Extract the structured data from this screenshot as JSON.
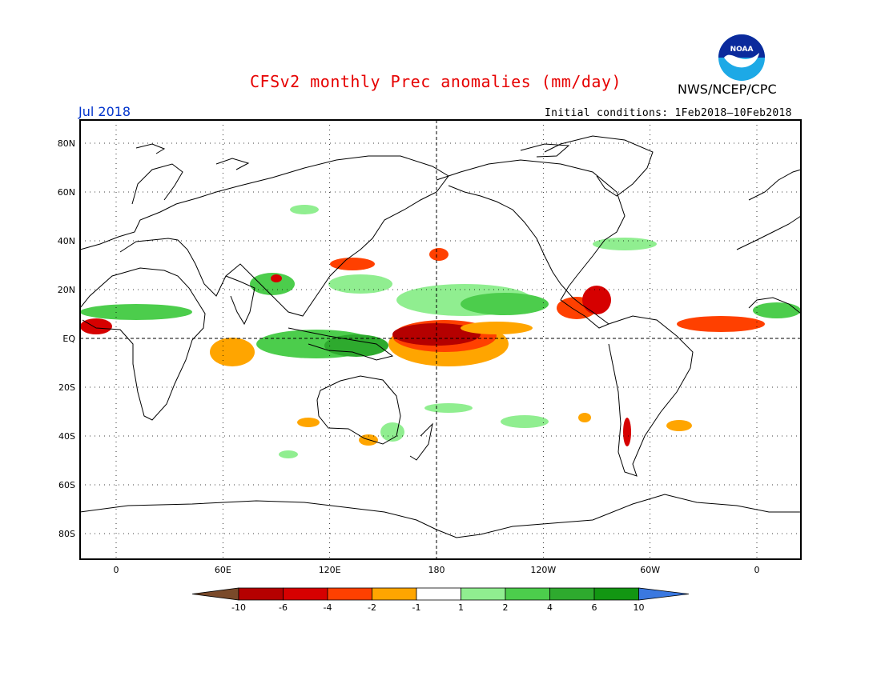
{
  "header": {
    "title": "CFSv2 monthly Prec anomalies (mm/day)",
    "org": "NWS/NCEP/CPC",
    "month": "Jul 2018",
    "initial_conditions": "Initial conditions: 1Feb2018–10Feb2018",
    "logo_text": "NOAA"
  },
  "map": {
    "lat_labels": [
      "80N",
      "60N",
      "40N",
      "20N",
      "EQ",
      "20S",
      "40S",
      "60S",
      "80S"
    ],
    "lon_labels": [
      "0",
      "60E",
      "120E",
      "180",
      "120W",
      "60W",
      "0"
    ]
  },
  "colorbar": {
    "labels": [
      "-10",
      "-6",
      "-4",
      "-2",
      "-1",
      "1",
      "2",
      "4",
      "6",
      "10"
    ],
    "colors": [
      "#7a4a2a",
      "#b50000",
      "#d60000",
      "#ff4000",
      "#ffa500",
      "#ffffff",
      "#90ee90",
      "#4ccd4c",
      "#2eaa2e",
      "#129612",
      "#3a78e0"
    ]
  },
  "colors": {
    "title": "#e60000",
    "month": "#0033cc"
  }
}
